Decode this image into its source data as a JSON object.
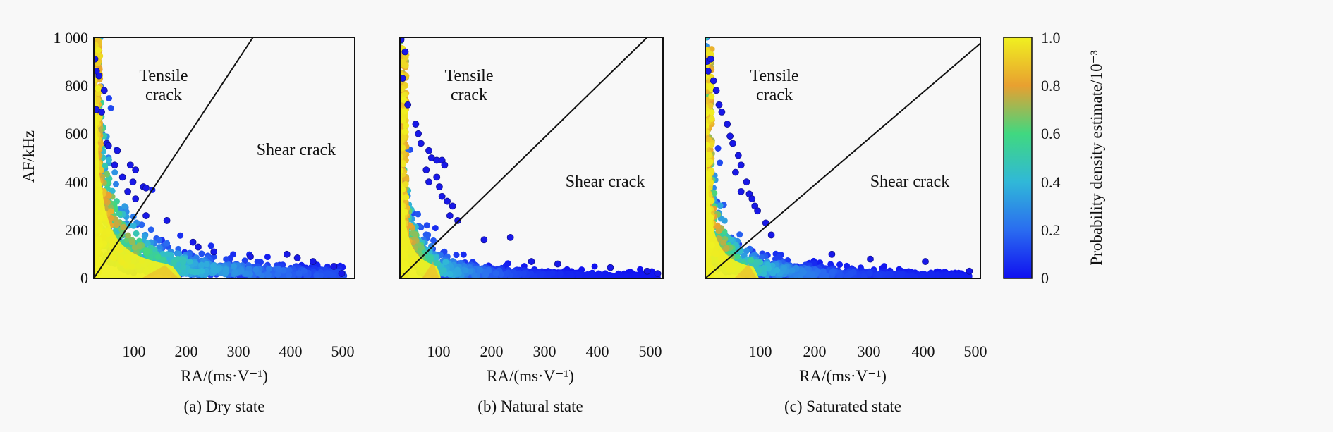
{
  "chart_data": [
    {
      "type": "scatter",
      "panel": "a",
      "caption": "(a) Dry state",
      "xlabel": "RA/(ms·V⁻¹)",
      "ylabel": "AF/kHz",
      "xlim": [
        0,
        500
      ],
      "ylim": [
        0,
        1000
      ],
      "xticks": [
        "100",
        "200",
        "300",
        "400",
        "500"
      ],
      "yticks": [
        "0",
        "200",
        "400",
        "600",
        "800",
        "1 000"
      ],
      "annotations": {
        "tensile_line1": "Tensile",
        "tensile_line2": "crack",
        "shear": "Shear crack"
      },
      "divider_line": {
        "from": [
          0,
          0
        ],
        "to": [
          305,
          1000
        ]
      },
      "band_model": {
        "A": 12000,
        "c": 10,
        "max_ra": 480,
        "core_ra": 130,
        "core_af": 110
      },
      "outliers": [
        [
          2,
          910
        ],
        [
          5,
          860
        ],
        [
          10,
          840
        ],
        [
          20,
          780
        ],
        [
          5,
          700
        ],
        [
          15,
          690
        ],
        [
          25,
          560
        ],
        [
          28,
          550
        ],
        [
          45,
          530
        ],
        [
          40,
          470
        ],
        [
          70,
          470
        ],
        [
          80,
          450
        ],
        [
          55,
          420
        ],
        [
          75,
          400
        ],
        [
          95,
          380
        ],
        [
          100,
          375
        ],
        [
          65,
          360
        ],
        [
          80,
          330
        ],
        [
          100,
          260
        ],
        [
          140,
          240
        ],
        [
          190,
          150
        ],
        [
          200,
          130
        ],
        [
          230,
          110
        ],
        [
          300,
          90
        ],
        [
          370,
          100
        ],
        [
          390,
          85
        ],
        [
          420,
          70
        ],
        [
          460,
          50
        ],
        [
          475,
          20
        ]
      ]
    },
    {
      "type": "scatter",
      "panel": "b",
      "caption": "(b) Natural state",
      "xlabel": "RA/(ms·V⁻¹)",
      "ylabel": "",
      "xlim": [
        0,
        500
      ],
      "ylim": [
        0,
        1000
      ],
      "xticks": [
        "100",
        "200",
        "300",
        "400",
        "500"
      ],
      "annotations": {
        "tensile_line1": "Tensile",
        "tensile_line2": "crack",
        "shear": "Shear crack"
      },
      "divider_line": {
        "from": [
          0,
          0
        ],
        "to": [
          470,
          1000
        ]
      },
      "band_model": {
        "A": 5200,
        "c": 6,
        "max_ra": 490,
        "core_ra": 60,
        "core_af": 140
      },
      "outliers": [
        [
          2,
          990
        ],
        [
          10,
          940
        ],
        [
          5,
          830
        ],
        [
          15,
          720
        ],
        [
          30,
          640
        ],
        [
          35,
          600
        ],
        [
          40,
          560
        ],
        [
          55,
          530
        ],
        [
          60,
          500
        ],
        [
          70,
          490
        ],
        [
          80,
          490
        ],
        [
          85,
          470
        ],
        [
          50,
          450
        ],
        [
          70,
          420
        ],
        [
          55,
          400
        ],
        [
          75,
          380
        ],
        [
          80,
          340
        ],
        [
          90,
          320
        ],
        [
          100,
          300
        ],
        [
          95,
          260
        ],
        [
          110,
          240
        ],
        [
          160,
          160
        ],
        [
          210,
          170
        ],
        [
          250,
          70
        ],
        [
          300,
          60
        ],
        [
          400,
          45
        ],
        [
          470,
          30
        ],
        [
          490,
          20
        ]
      ]
    },
    {
      "type": "scatter",
      "panel": "c",
      "caption": "(c) Saturated state",
      "xlabel": "RA/(ms·V⁻¹)",
      "ylabel": "",
      "xlim": [
        0,
        500
      ],
      "ylim": [
        0,
        1000
      ],
      "xticks": [
        "100",
        "200",
        "300",
        "400",
        "500"
      ],
      "annotations": {
        "tensile_line1": "Tensile",
        "tensile_line2": "crack",
        "shear": "Shear crack"
      },
      "divider_line": {
        "from": [
          0,
          0
        ],
        "to": [
          500,
          975
        ]
      },
      "band_model": {
        "A": 6000,
        "c": 7,
        "max_ra": 480,
        "core_ra": 75,
        "core_af": 120
      },
      "outliers": [
        [
          3,
          900
        ],
        [
          10,
          910
        ],
        [
          5,
          860
        ],
        [
          15,
          820
        ],
        [
          20,
          780
        ],
        [
          25,
          720
        ],
        [
          30,
          690
        ],
        [
          40,
          640
        ],
        [
          45,
          590
        ],
        [
          50,
          560
        ],
        [
          60,
          510
        ],
        [
          65,
          470
        ],
        [
          55,
          440
        ],
        [
          75,
          400
        ],
        [
          65,
          360
        ],
        [
          80,
          350
        ],
        [
          85,
          330
        ],
        [
          90,
          300
        ],
        [
          95,
          280
        ],
        [
          110,
          230
        ],
        [
          120,
          180
        ],
        [
          230,
          100
        ],
        [
          300,
          80
        ],
        [
          400,
          70
        ],
        [
          480,
          30
        ]
      ]
    }
  ],
  "colorbar": {
    "label": "Probability density estimate/10⁻³",
    "ticks": [
      "0",
      "0.2",
      "0.4",
      "0.6",
      "0.8",
      "1.0"
    ],
    "range": [
      0,
      1.0
    ],
    "colors": [
      "#1010f0",
      "#2a6cf0",
      "#30b8d8",
      "#40d880",
      "#e8a030",
      "#f0f020"
    ]
  }
}
